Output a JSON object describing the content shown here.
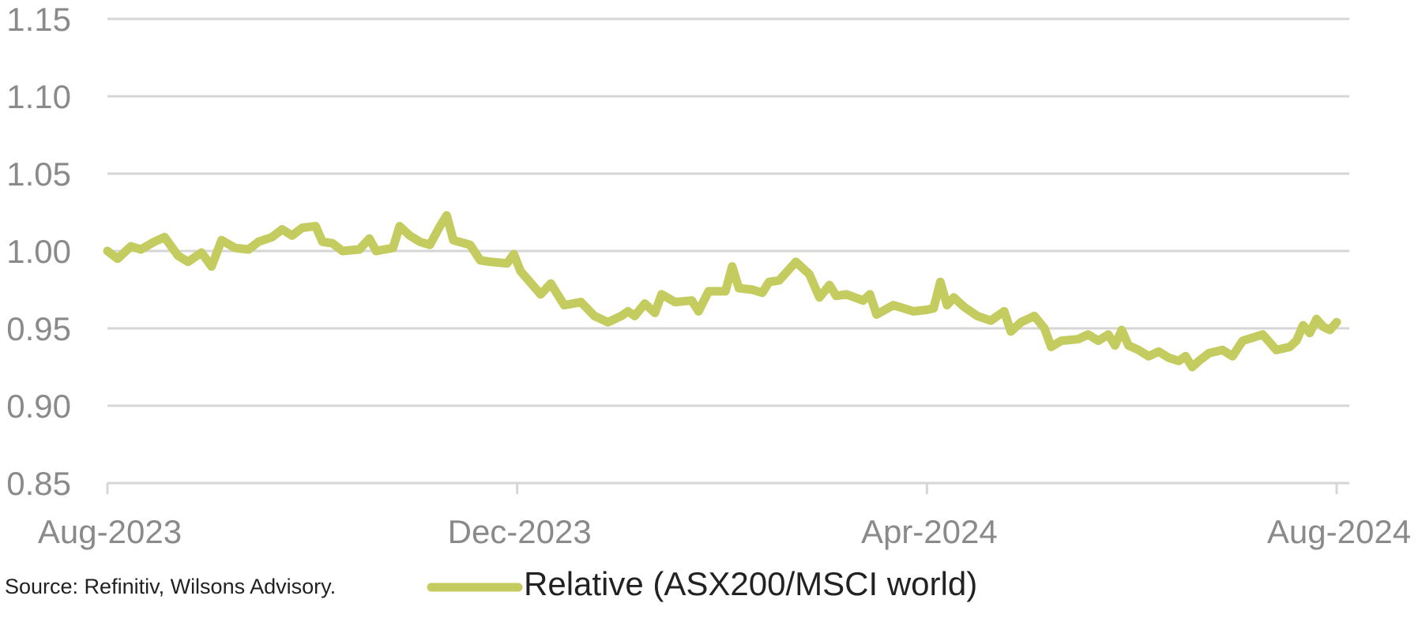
{
  "source_text": "Source: Refinitiv, Wilsons Advisory.",
  "colors": {
    "series": "#c5cc5f",
    "grid": "#d6d6d6",
    "tick_text": "#8a8a8a",
    "text": "#222222"
  },
  "chart_data": {
    "type": "line",
    "title": "",
    "xlabel": "",
    "ylabel": "",
    "ylim": [
      0.85,
      1.15
    ],
    "y_ticks": [
      "1.15",
      "1.10",
      "1.05",
      "1.00",
      "0.95",
      "0.90",
      "0.85"
    ],
    "x_ticks": [
      "Aug-2023",
      "Dec-2023",
      "Apr-2024",
      "Aug-2024"
    ],
    "x_range": [
      "2023-08-01",
      "2024-08-01"
    ],
    "grid": true,
    "legend_position": "bottom",
    "series": [
      {
        "name": "Relative (ASX200/MSCI world)",
        "points": [
          [
            "2023-08-01",
            1.0
          ],
          [
            "2023-08-04",
            0.995
          ],
          [
            "2023-08-08",
            1.003
          ],
          [
            "2023-08-11",
            1.001
          ],
          [
            "2023-08-15",
            1.006
          ],
          [
            "2023-08-18",
            1.009
          ],
          [
            "2023-08-22",
            0.997
          ],
          [
            "2023-08-25",
            0.993
          ],
          [
            "2023-08-29",
            0.999
          ],
          [
            "2023-09-01",
            0.99
          ],
          [
            "2023-09-04",
            1.007
          ],
          [
            "2023-09-08",
            1.002
          ],
          [
            "2023-09-12",
            1.001
          ],
          [
            "2023-09-15",
            1.006
          ],
          [
            "2023-09-19",
            1.009
          ],
          [
            "2023-09-22",
            1.014
          ],
          [
            "2023-09-25",
            1.01
          ],
          [
            "2023-09-28",
            1.015
          ],
          [
            "2023-10-02",
            1.016
          ],
          [
            "2023-10-04",
            1.006
          ],
          [
            "2023-10-07",
            1.005
          ],
          [
            "2023-10-10",
            1.0
          ],
          [
            "2023-10-15",
            1.001
          ],
          [
            "2023-10-18",
            1.008
          ],
          [
            "2023-10-20",
            1.0
          ],
          [
            "2023-10-25",
            1.002
          ],
          [
            "2023-10-27",
            1.016
          ],
          [
            "2023-10-30",
            1.01
          ],
          [
            "2023-11-02",
            1.006
          ],
          [
            "2023-11-05",
            1.004
          ],
          [
            "2023-11-08",
            1.016
          ],
          [
            "2023-11-10",
            1.023
          ],
          [
            "2023-11-12",
            1.007
          ],
          [
            "2023-11-17",
            1.004
          ],
          [
            "2023-11-20",
            0.994
          ],
          [
            "2023-11-23",
            0.993
          ],
          [
            "2023-11-28",
            0.992
          ],
          [
            "2023-11-30",
            0.998
          ],
          [
            "2023-12-02",
            0.987
          ],
          [
            "2023-12-08",
            0.972
          ],
          [
            "2023-12-11",
            0.979
          ],
          [
            "2023-12-15",
            0.965
          ],
          [
            "2023-12-20",
            0.967
          ],
          [
            "2023-12-24",
            0.958
          ],
          [
            "2023-12-28",
            0.954
          ],
          [
            "2024-01-01",
            0.958
          ],
          [
            "2024-01-03",
            0.961
          ],
          [
            "2024-01-05",
            0.958
          ],
          [
            "2024-01-08",
            0.966
          ],
          [
            "2024-01-11",
            0.96
          ],
          [
            "2024-01-13",
            0.972
          ],
          [
            "2024-01-17",
            0.967
          ],
          [
            "2024-01-22",
            0.968
          ],
          [
            "2024-01-24",
            0.961
          ],
          [
            "2024-01-27",
            0.974
          ],
          [
            "2024-02-01",
            0.974
          ],
          [
            "2024-02-03",
            0.99
          ],
          [
            "2024-02-05",
            0.976
          ],
          [
            "2024-02-09",
            0.975
          ],
          [
            "2024-02-12",
            0.973
          ],
          [
            "2024-02-14",
            0.98
          ],
          [
            "2024-02-17",
            0.981
          ],
          [
            "2024-02-22",
            0.993
          ],
          [
            "2024-02-26",
            0.985
          ],
          [
            "2024-02-29",
            0.97
          ],
          [
            "2024-03-03",
            0.978
          ],
          [
            "2024-03-05",
            0.971
          ],
          [
            "2024-03-08",
            0.972
          ],
          [
            "2024-03-13",
            0.968
          ],
          [
            "2024-03-15",
            0.972
          ],
          [
            "2024-03-17",
            0.959
          ],
          [
            "2024-03-22",
            0.965
          ],
          [
            "2024-03-25",
            0.963
          ],
          [
            "2024-03-28",
            0.961
          ],
          [
            "2024-04-01",
            0.962
          ],
          [
            "2024-04-03",
            0.963
          ],
          [
            "2024-04-05",
            0.98
          ],
          [
            "2024-04-07",
            0.965
          ],
          [
            "2024-04-09",
            0.97
          ],
          [
            "2024-04-12",
            0.964
          ],
          [
            "2024-04-16",
            0.958
          ],
          [
            "2024-04-20",
            0.955
          ],
          [
            "2024-04-24",
            0.961
          ],
          [
            "2024-04-26",
            0.948
          ],
          [
            "2024-04-29",
            0.954
          ],
          [
            "2024-05-03",
            0.958
          ],
          [
            "2024-05-06",
            0.95
          ],
          [
            "2024-05-08",
            0.938
          ],
          [
            "2024-05-11",
            0.942
          ],
          [
            "2024-05-16",
            0.943
          ],
          [
            "2024-05-19",
            0.946
          ],
          [
            "2024-05-22",
            0.942
          ],
          [
            "2024-05-25",
            0.946
          ],
          [
            "2024-05-27",
            0.939
          ],
          [
            "2024-05-29",
            0.949
          ],
          [
            "2024-05-31",
            0.939
          ],
          [
            "2024-06-03",
            0.936
          ],
          [
            "2024-06-06",
            0.932
          ],
          [
            "2024-06-09",
            0.935
          ],
          [
            "2024-06-12",
            0.931
          ],
          [
            "2024-06-15",
            0.929
          ],
          [
            "2024-06-17",
            0.932
          ],
          [
            "2024-06-19",
            0.925
          ],
          [
            "2024-06-21",
            0.929
          ],
          [
            "2024-06-24",
            0.934
          ],
          [
            "2024-06-28",
            0.936
          ],
          [
            "2024-07-01",
            0.932
          ],
          [
            "2024-07-04",
            0.942
          ],
          [
            "2024-07-07",
            0.944
          ],
          [
            "2024-07-10",
            0.946
          ],
          [
            "2024-07-14",
            0.936
          ],
          [
            "2024-07-18",
            0.938
          ],
          [
            "2024-07-20",
            0.942
          ],
          [
            "2024-07-22",
            0.952
          ],
          [
            "2024-07-24",
            0.947
          ],
          [
            "2024-07-26",
            0.956
          ],
          [
            "2024-07-28",
            0.951
          ],
          [
            "2024-07-30",
            0.949
          ],
          [
            "2024-08-01",
            0.954
          ]
        ]
      }
    ]
  }
}
